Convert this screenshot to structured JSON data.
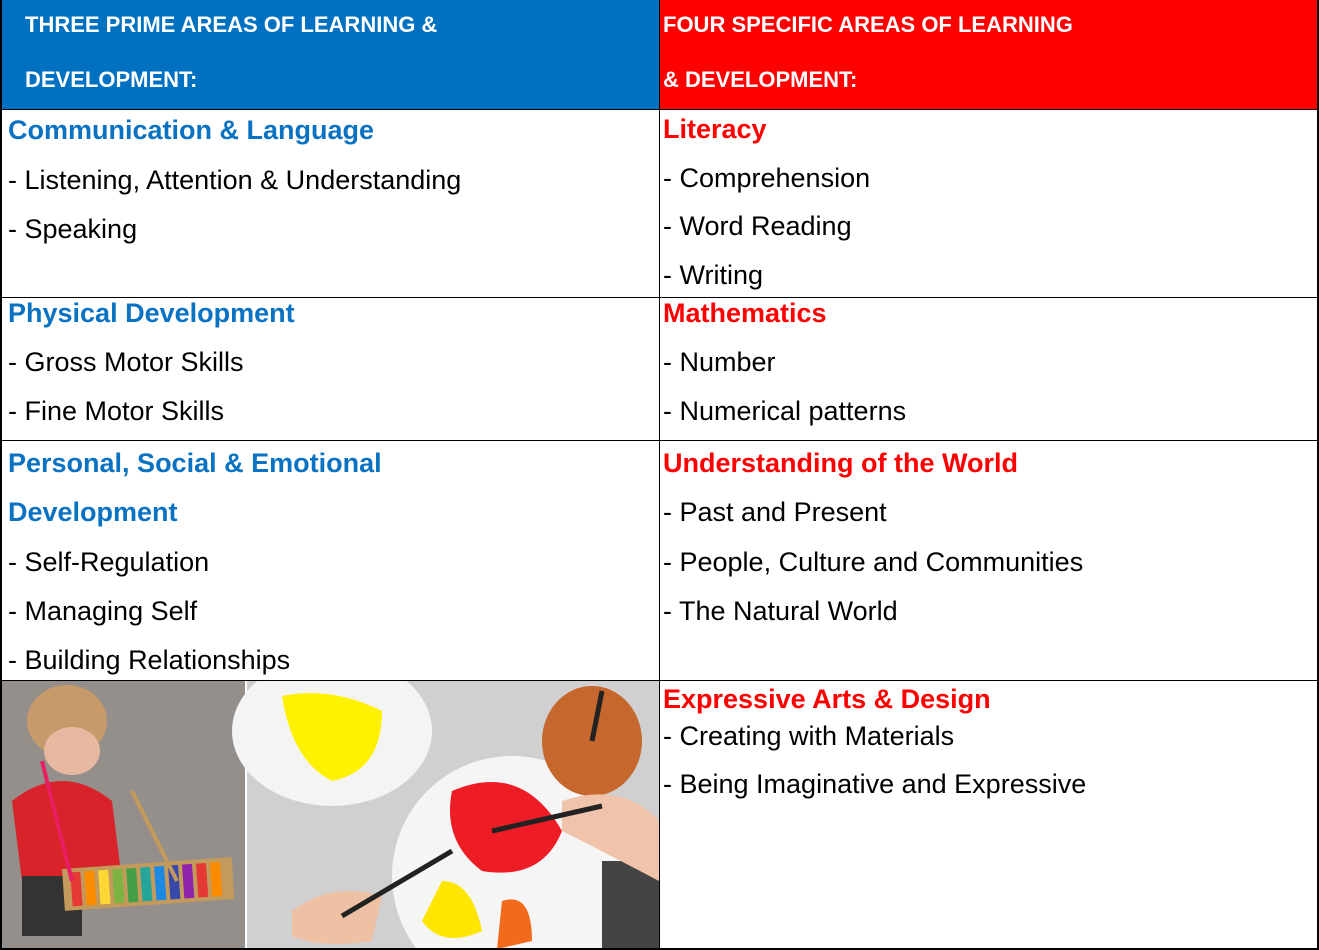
{
  "table": {
    "headers": [
      [
        "THREE PRIME AREAS OF LEARNING &",
        "DEVELOPMENT:"
      ],
      [
        "FOUR SPECIFIC AREAS OF LEARNING",
        "& DEVELOPMENT:"
      ]
    ],
    "rows": [
      {
        "left": {
          "title": [
            "Communication & Language"
          ],
          "items": [
            "- Listening, Attention & Understanding",
            "- Speaking"
          ]
        },
        "right": {
          "title": [
            "Literacy"
          ],
          "items": [
            "- Comprehension",
            "- Word Reading",
            "- Writing"
          ]
        }
      },
      {
        "left": {
          "title": [
            "Physical Development"
          ],
          "items": [
            "- Gross Motor Skills",
            "- Fine Motor Skills"
          ]
        },
        "right": {
          "title": [
            "Mathematics"
          ],
          "items": [
            "- Number",
            "- Numerical patterns"
          ]
        }
      },
      {
        "left": {
          "title": [
            "Personal, Social & Emotional",
            "Development"
          ],
          "items": [
            "- Self-Regulation",
            "- Managing Self",
            "- Building Relationships"
          ]
        },
        "right": {
          "title": [
            "Understanding of the World"
          ],
          "items": [
            "- Past and Present",
            "- People, Culture and Communities",
            "- The Natural World"
          ]
        }
      },
      {
        "right": {
          "title": [
            "Expressive Arts & Design"
          ],
          "items": [
            "- Creating with Materials",
            "- Being Imaginative and Expressive"
          ]
        }
      }
    ]
  }
}
